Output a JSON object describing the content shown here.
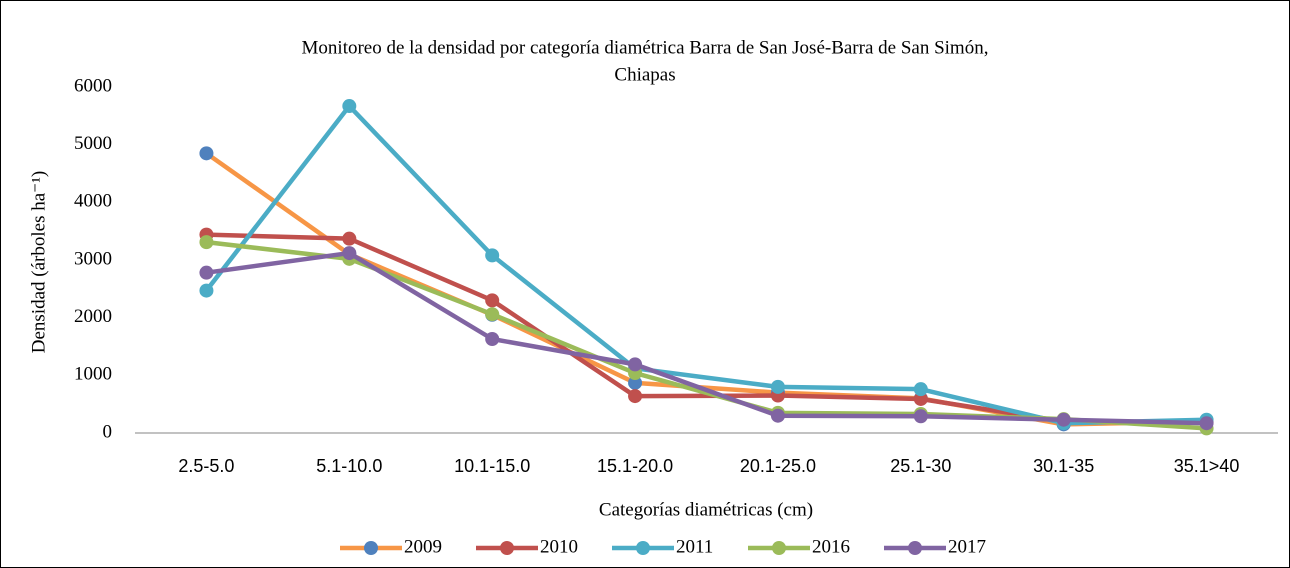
{
  "chart_data": {
    "type": "line",
    "title": [
      "Monitoreo de la densidad por categoría diamétrica Barra de San José-Barra de San Simón,",
      "Chiapas"
    ],
    "x_label": "Categorías diamétricas (cm)",
    "y_label": "Densidad (árboles  ha⁻¹)",
    "categories": [
      "2.5-5.0",
      "5.1-10.0",
      "10.1-15.0",
      "15.1-20.0",
      "20.1-25.0",
      "25.1-30",
      "30.1-35",
      "35.1>40"
    ],
    "ylim": [
      0,
      6000
    ],
    "yticks": [
      0,
      1000,
      2000,
      3000,
      4000,
      5000,
      6000
    ],
    "series": [
      {
        "name": "2009",
        "color": "#f79646",
        "marker_color": "#4f81bd",
        "values": [
          4850,
          3100,
          2050,
          870,
          700,
          600,
          150,
          200
        ]
      },
      {
        "name": "2010",
        "color": "#c0504d",
        "marker_color": "#c0504d",
        "values": [
          3440,
          3370,
          2300,
          640,
          650,
          590,
          200,
          180
        ]
      },
      {
        "name": "2011",
        "color": "#4bacc6",
        "marker_color": "#4bacc6",
        "values": [
          2470,
          5670,
          3080,
          1120,
          800,
          760,
          170,
          230
        ]
      },
      {
        "name": "2016",
        "color": "#9bbb59",
        "marker_color": "#9bbb59",
        "values": [
          3310,
          3020,
          2060,
          1040,
          350,
          330,
          240,
          80
        ]
      },
      {
        "name": "2017",
        "color": "#8064a2",
        "marker_color": "#8064a2",
        "values": [
          2780,
          3120,
          1630,
          1190,
          300,
          290,
          230,
          170
        ]
      }
    ]
  }
}
